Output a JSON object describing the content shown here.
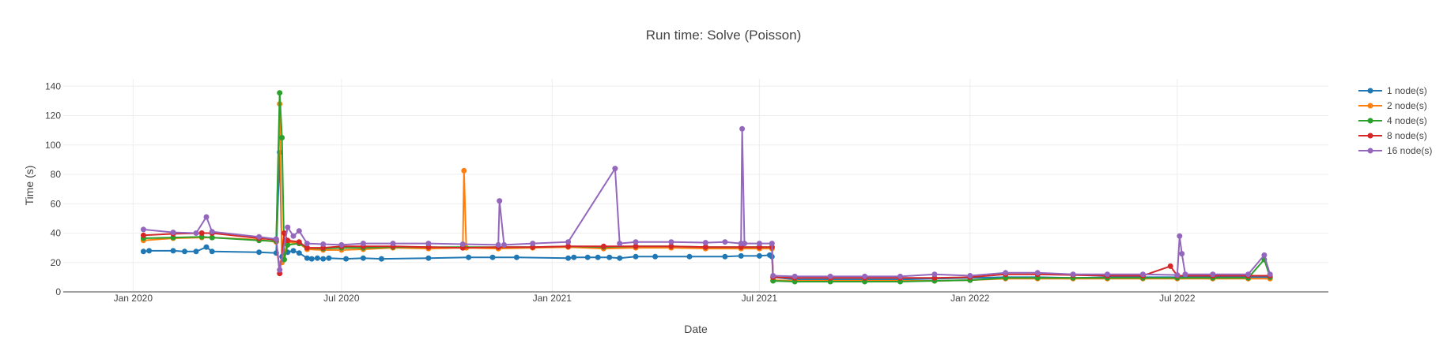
{
  "chart_data": {
    "type": "line",
    "title": "Run time: Solve (Poisson)",
    "xlabel": "Date",
    "ylabel": "Time (s)",
    "xlim": [
      "2019-11-01",
      "2022-11-10"
    ],
    "ylim": [
      0,
      145
    ],
    "x_ticks": [
      {
        "date": "2020-01-01",
        "label": "Jan 2020"
      },
      {
        "date": "2020-07-01",
        "label": "Jul 2020"
      },
      {
        "date": "2021-01-01",
        "label": "Jan 2021"
      },
      {
        "date": "2021-07-01",
        "label": "Jul 2021"
      },
      {
        "date": "2022-01-01",
        "label": "Jan 2022"
      },
      {
        "date": "2022-07-01",
        "label": "Jul 2022"
      }
    ],
    "y_ticks": [
      0,
      20,
      40,
      60,
      80,
      100,
      120,
      140
    ],
    "grid": true,
    "legend_position": "top-right",
    "series": [
      {
        "name": "1 node(s)",
        "color": "#1f77b4",
        "points": [
          [
            "2020-01-10",
            27.5
          ],
          [
            "2020-01-15",
            28
          ],
          [
            "2020-02-05",
            28
          ],
          [
            "2020-02-15",
            27.5
          ],
          [
            "2020-02-25",
            27.5
          ],
          [
            "2020-03-05",
            30.5
          ],
          [
            "2020-03-10",
            27.5
          ],
          [
            "2020-04-20",
            27
          ],
          [
            "2020-05-05",
            26.5
          ],
          [
            "2020-05-08",
            95
          ],
          [
            "2020-05-10",
            24
          ],
          [
            "2020-05-15",
            27
          ],
          [
            "2020-05-20",
            28
          ],
          [
            "2020-05-25",
            26.5
          ],
          [
            "2020-06-01",
            23
          ],
          [
            "2020-06-05",
            22.5
          ],
          [
            "2020-06-10",
            23
          ],
          [
            "2020-06-15",
            22.5
          ],
          [
            "2020-06-20",
            23
          ],
          [
            "2020-07-05",
            22.5
          ],
          [
            "2020-07-20",
            23
          ],
          [
            "2020-08-05",
            22.5
          ],
          [
            "2020-09-15",
            23
          ],
          [
            "2020-10-20",
            23.5
          ],
          [
            "2020-11-10",
            23.5
          ],
          [
            "2020-12-01",
            23.5
          ],
          [
            "2021-01-15",
            23
          ],
          [
            "2021-01-20",
            23.5
          ],
          [
            "2021-02-01",
            23.5
          ],
          [
            "2021-02-10",
            23.5
          ],
          [
            "2021-02-20",
            23.5
          ],
          [
            "2021-03-01",
            23
          ],
          [
            "2021-03-15",
            24
          ],
          [
            "2021-04-01",
            24
          ],
          [
            "2021-05-01",
            24
          ],
          [
            "2021-06-01",
            24
          ],
          [
            "2021-06-15",
            24.5
          ],
          [
            "2021-07-01",
            24.5
          ],
          [
            "2021-07-10",
            25
          ],
          [
            "2021-07-12",
            24
          ],
          [
            "2021-07-13",
            10
          ],
          [
            "2021-08-01",
            8.5
          ],
          [
            "2021-09-01",
            8.5
          ],
          [
            "2021-10-01",
            8.5
          ],
          [
            "2021-11-01",
            8.5
          ],
          [
            "2021-12-01",
            9
          ],
          [
            "2022-01-01",
            9.5
          ],
          [
            "2022-02-01",
            10
          ],
          [
            "2022-03-01",
            10
          ],
          [
            "2022-04-01",
            9.5
          ],
          [
            "2022-05-01",
            10
          ],
          [
            "2022-06-01",
            10
          ],
          [
            "2022-07-01",
            10
          ],
          [
            "2022-08-01",
            10
          ],
          [
            "2022-09-01",
            10
          ],
          [
            "2022-09-20",
            10
          ]
        ]
      },
      {
        "name": "2 node(s)",
        "color": "#ff7f0e",
        "points": [
          [
            "2020-01-10",
            35
          ],
          [
            "2020-02-05",
            36.5
          ],
          [
            "2020-03-01",
            37
          ],
          [
            "2020-03-10",
            37
          ],
          [
            "2020-04-20",
            35.5
          ],
          [
            "2020-05-05",
            34
          ],
          [
            "2020-05-08",
            128
          ],
          [
            "2020-05-10",
            20
          ],
          [
            "2020-05-15",
            34
          ],
          [
            "2020-05-25",
            33
          ],
          [
            "2020-06-01",
            29
          ],
          [
            "2020-06-15",
            28.5
          ],
          [
            "2020-07-01",
            28.5
          ],
          [
            "2020-07-20",
            29
          ],
          [
            "2020-08-15",
            30
          ],
          [
            "2020-09-15",
            29.5
          ],
          [
            "2020-10-15",
            30
          ],
          [
            "2020-10-16",
            82.5
          ],
          [
            "2020-10-18",
            30
          ],
          [
            "2020-11-15",
            29.5
          ],
          [
            "2020-12-15",
            30
          ],
          [
            "2021-01-15",
            30.5
          ],
          [
            "2021-02-15",
            29.5
          ],
          [
            "2021-03-15",
            30
          ],
          [
            "2021-04-15",
            30
          ],
          [
            "2021-05-15",
            29.5
          ],
          [
            "2021-06-15",
            29.5
          ],
          [
            "2021-07-01",
            29.5
          ],
          [
            "2021-07-12",
            29.5
          ],
          [
            "2021-07-13",
            8
          ],
          [
            "2021-08-01",
            7.5
          ],
          [
            "2021-09-01",
            7.5
          ],
          [
            "2021-10-01",
            7.5
          ],
          [
            "2021-11-01",
            7.5
          ],
          [
            "2021-12-01",
            7.5
          ],
          [
            "2022-01-01",
            8
          ],
          [
            "2022-02-01",
            9
          ],
          [
            "2022-03-01",
            9
          ],
          [
            "2022-04-01",
            9
          ],
          [
            "2022-05-01",
            9
          ],
          [
            "2022-06-01",
            9
          ],
          [
            "2022-07-01",
            9
          ],
          [
            "2022-08-01",
            9
          ],
          [
            "2022-09-01",
            9
          ],
          [
            "2022-09-20",
            9
          ]
        ]
      },
      {
        "name": "4 node(s)",
        "color": "#2ca02c",
        "points": [
          [
            "2020-01-10",
            36.5
          ],
          [
            "2020-02-05",
            37
          ],
          [
            "2020-03-01",
            37.5
          ],
          [
            "2020-03-10",
            37
          ],
          [
            "2020-04-20",
            35
          ],
          [
            "2020-05-05",
            34.5
          ],
          [
            "2020-05-08",
            135.5
          ],
          [
            "2020-05-10",
            105
          ],
          [
            "2020-05-12",
            22
          ],
          [
            "2020-05-15",
            32
          ],
          [
            "2020-05-25",
            33
          ],
          [
            "2020-06-01",
            30
          ],
          [
            "2020-06-15",
            29.5
          ],
          [
            "2020-07-01",
            30
          ],
          [
            "2020-07-20",
            30
          ],
          [
            "2020-08-15",
            30.5
          ],
          [
            "2020-09-15",
            30.5
          ],
          [
            "2020-10-15",
            30.5
          ],
          [
            "2020-11-15",
            30.5
          ],
          [
            "2020-12-15",
            30.5
          ],
          [
            "2021-01-15",
            31
          ],
          [
            "2021-02-15",
            30.5
          ],
          [
            "2021-03-15",
            31
          ],
          [
            "2021-04-15",
            31
          ],
          [
            "2021-05-15",
            30.5
          ],
          [
            "2021-06-15",
            30.5
          ],
          [
            "2021-07-01",
            30.5
          ],
          [
            "2021-07-12",
            30.5
          ],
          [
            "2021-07-13",
            7.5
          ],
          [
            "2021-08-01",
            7
          ],
          [
            "2021-09-01",
            7
          ],
          [
            "2021-10-01",
            7
          ],
          [
            "2021-11-01",
            7
          ],
          [
            "2021-12-01",
            7.5
          ],
          [
            "2022-01-01",
            8
          ],
          [
            "2022-02-01",
            9.5
          ],
          [
            "2022-03-01",
            9.5
          ],
          [
            "2022-04-01",
            9.5
          ],
          [
            "2022-05-01",
            9.5
          ],
          [
            "2022-06-01",
            9.5
          ],
          [
            "2022-07-01",
            9.5
          ],
          [
            "2022-08-01",
            9.5
          ],
          [
            "2022-09-01",
            9.5
          ],
          [
            "2022-09-15",
            22
          ],
          [
            "2022-09-20",
            10
          ]
        ]
      },
      {
        "name": "8 node(s)",
        "color": "#d62728",
        "points": [
          [
            "2020-01-10",
            38.5
          ],
          [
            "2020-02-05",
            39.5
          ],
          [
            "2020-03-01",
            40
          ],
          [
            "2020-03-10",
            40
          ],
          [
            "2020-04-20",
            36.5
          ],
          [
            "2020-05-05",
            35.5
          ],
          [
            "2020-05-08",
            12.5
          ],
          [
            "2020-05-12",
            40
          ],
          [
            "2020-05-15",
            35
          ],
          [
            "2020-05-25",
            34
          ],
          [
            "2020-06-01",
            30
          ],
          [
            "2020-06-15",
            30
          ],
          [
            "2020-07-01",
            31
          ],
          [
            "2020-07-20",
            31
          ],
          [
            "2020-08-15",
            31
          ],
          [
            "2020-09-15",
            30.5
          ],
          [
            "2020-10-15",
            30
          ],
          [
            "2020-11-15",
            30.5
          ],
          [
            "2020-12-15",
            30.5
          ],
          [
            "2021-01-15",
            31
          ],
          [
            "2021-02-15",
            31
          ],
          [
            "2021-03-15",
            31
          ],
          [
            "2021-04-15",
            31
          ],
          [
            "2021-05-15",
            30.5
          ],
          [
            "2021-06-15",
            30.5
          ],
          [
            "2021-07-01",
            30.5
          ],
          [
            "2021-07-12",
            30.5
          ],
          [
            "2021-07-13",
            10
          ],
          [
            "2021-08-01",
            9.5
          ],
          [
            "2021-09-01",
            9.5
          ],
          [
            "2021-10-01",
            9.5
          ],
          [
            "2021-11-01",
            9.5
          ],
          [
            "2021-12-01",
            9.5
          ],
          [
            "2022-01-01",
            10
          ],
          [
            "2022-02-01",
            12
          ],
          [
            "2022-03-01",
            12
          ],
          [
            "2022-04-01",
            11.5
          ],
          [
            "2022-05-01",
            11
          ],
          [
            "2022-06-01",
            11
          ],
          [
            "2022-06-25",
            17.5
          ],
          [
            "2022-07-01",
            11
          ],
          [
            "2022-08-01",
            11
          ],
          [
            "2022-09-01",
            11
          ],
          [
            "2022-09-20",
            11
          ]
        ]
      },
      {
        "name": "16 node(s)",
        "color": "#9467bd",
        "points": [
          [
            "2020-01-10",
            42.5
          ],
          [
            "2020-02-05",
            40.5
          ],
          [
            "2020-02-25",
            40
          ],
          [
            "2020-03-05",
            51
          ],
          [
            "2020-03-10",
            41
          ],
          [
            "2020-04-20",
            37.5
          ],
          [
            "2020-05-05",
            36
          ],
          [
            "2020-05-08",
            15
          ],
          [
            "2020-05-15",
            44
          ],
          [
            "2020-05-20",
            38
          ],
          [
            "2020-05-25",
            41.5
          ],
          [
            "2020-06-01",
            33
          ],
          [
            "2020-06-15",
            32.5
          ],
          [
            "2020-07-01",
            32
          ],
          [
            "2020-07-20",
            33
          ],
          [
            "2020-08-15",
            33
          ],
          [
            "2020-09-15",
            33
          ],
          [
            "2020-10-15",
            32.5
          ],
          [
            "2020-11-15",
            32
          ],
          [
            "2020-11-16",
            62
          ],
          [
            "2020-11-20",
            32
          ],
          [
            "2020-12-15",
            33
          ],
          [
            "2021-01-15",
            34
          ],
          [
            "2021-02-25",
            84
          ],
          [
            "2021-03-01",
            33
          ],
          [
            "2021-03-15",
            34
          ],
          [
            "2021-04-15",
            34
          ],
          [
            "2021-05-15",
            33.5
          ],
          [
            "2021-06-01",
            34
          ],
          [
            "2021-06-15",
            33
          ],
          [
            "2021-06-16",
            111
          ],
          [
            "2021-06-18",
            33
          ],
          [
            "2021-07-01",
            33
          ],
          [
            "2021-07-12",
            33
          ],
          [
            "2021-07-13",
            11
          ],
          [
            "2021-08-01",
            10.5
          ],
          [
            "2021-09-01",
            10.5
          ],
          [
            "2021-10-01",
            10.5
          ],
          [
            "2021-11-01",
            10.5
          ],
          [
            "2021-12-01",
            12
          ],
          [
            "2022-01-01",
            11
          ],
          [
            "2022-02-01",
            13
          ],
          [
            "2022-03-01",
            13
          ],
          [
            "2022-04-01",
            12
          ],
          [
            "2022-05-01",
            12
          ],
          [
            "2022-06-01",
            12
          ],
          [
            "2022-07-01",
            11.5
          ],
          [
            "2022-07-03",
            38
          ],
          [
            "2022-07-05",
            26
          ],
          [
            "2022-07-08",
            12
          ],
          [
            "2022-08-01",
            12
          ],
          [
            "2022-09-01",
            12
          ],
          [
            "2022-09-15",
            25
          ],
          [
            "2022-09-20",
            12
          ]
        ]
      }
    ]
  }
}
